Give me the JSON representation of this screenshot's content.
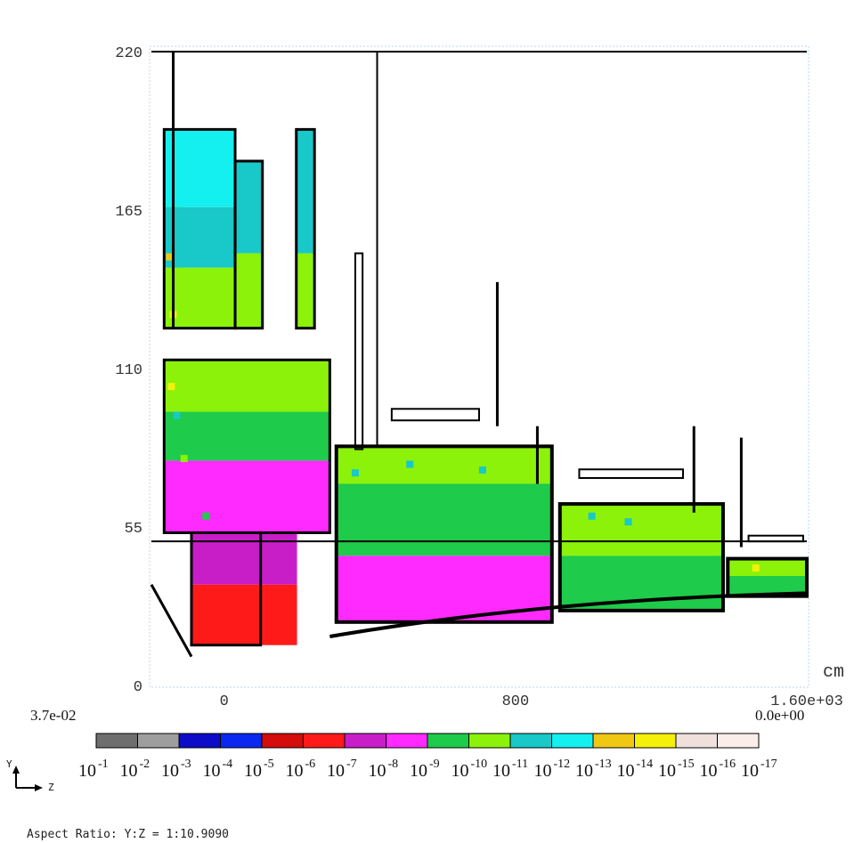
{
  "chart_data": {
    "type": "heatmap",
    "title": "",
    "xlabel": "cm",
    "ylabel": "",
    "xlim": [
      -200,
      1600
    ],
    "ylim": [
      0,
      220
    ],
    "x_ticks": [
      {
        "value": 0,
        "label": "0"
      },
      {
        "value": 800,
        "label": "800"
      },
      {
        "value": 1600,
        "label": "1.60e+03"
      }
    ],
    "y_ticks": [
      {
        "value": 0,
        "label": "0"
      },
      {
        "value": 55,
        "label": "55"
      },
      {
        "value": 110,
        "label": "110"
      },
      {
        "value": 165,
        "label": "165"
      },
      {
        "value": 220,
        "label": "220"
      }
    ],
    "colorbar": {
      "max_label": "3.7e-02",
      "min_label": "0.0e+00",
      "base": "10",
      "exponents": [
        "-1",
        "-2",
        "-3",
        "-4",
        "-5",
        "-6",
        "-7",
        "-8",
        "-9",
        "-10",
        "-11",
        "-12",
        "-13",
        "-14",
        "-15",
        "-16",
        "-17"
      ],
      "colors": [
        "#6e6e6e",
        "#9e9e9e",
        "#0b0bc8",
        "#0a28f0",
        "#d40c0c",
        "#ff1a1a",
        "#c81ec8",
        "#ff2aff",
        "#1ecb4a",
        "#8cf20a",
        "#19c8c8",
        "#14f0f0",
        "#f0c814",
        "#f5f00a",
        "#efe0dc",
        "#fbeeea"
      ]
    },
    "axis_indicator": {
      "vertical": "Y",
      "horizontal": "Z"
    },
    "aspect_ratio": "Aspect Ratio: Y:Z = 1:10.9090",
    "regions": [
      {
        "name": "top-left-block",
        "x0": -165,
        "x1": -110,
        "y0": 124,
        "y1": 192,
        "levels": [
          {
            "from": -165,
            "to": -150,
            "color": "#f5f00a"
          },
          {
            "from": -150,
            "to": -110,
            "color": "#8cf20a"
          }
        ]
      },
      {
        "name": "upper-block-a",
        "x0": -165,
        "x1": 30,
        "y0": 124,
        "y1": 193,
        "cells": [
          {
            "y0": 166,
            "y1": 193,
            "color": "#14f0f0"
          },
          {
            "y0": 145,
            "y1": 166,
            "color": "#19c8c8"
          },
          {
            "y0": 124,
            "y1": 145,
            "color": "#8cf20a"
          }
        ]
      },
      {
        "name": "upper-block-b",
        "x0": 30,
        "x1": 105,
        "y0": 124,
        "y1": 182,
        "cells": [
          {
            "y0": 150,
            "y1": 182,
            "color": "#19c8c8"
          },
          {
            "y0": 124,
            "y1": 150,
            "color": "#8cf20a"
          }
        ]
      },
      {
        "name": "upper-rod",
        "x0": 198,
        "x1": 248,
        "y0": 124,
        "y1": 193,
        "cells": [
          {
            "y0": 150,
            "y1": 193,
            "color": "#19c8c8"
          },
          {
            "y0": 124,
            "y1": 150,
            "color": "#8cf20a"
          }
        ]
      },
      {
        "name": "mid-block",
        "x0": -165,
        "x1": 290,
        "y0": 53,
        "y1": 113,
        "cells": [
          {
            "y0": 95,
            "y1": 113,
            "color": "#8cf20a"
          },
          {
            "y0": 78,
            "y1": 95,
            "color": "#1ecb4a"
          },
          {
            "y0": 53,
            "y1": 78,
            "color": "#ff2aff"
          }
        ]
      },
      {
        "name": "lower-cone",
        "x0": -90,
        "x1": 200,
        "y0": 14,
        "y1": 53,
        "cells": [
          {
            "y0": 35,
            "y1": 53,
            "color": "#c81ec8"
          },
          {
            "y0": 14,
            "y1": 35,
            "color": "#ff1a1a"
          }
        ]
      },
      {
        "name": "block-1",
        "x0": 308,
        "x1": 900,
        "y0": 22,
        "y1": 83,
        "cells": [
          {
            "y0": 70,
            "y1": 83,
            "color": "#8cf20a"
          },
          {
            "y0": 45,
            "y1": 70,
            "color": "#1ecb4a"
          },
          {
            "y0": 22,
            "y1": 45,
            "color": "#ff2aff"
          }
        ]
      },
      {
        "name": "block-2",
        "x0": 922,
        "x1": 1370,
        "y0": 26,
        "y1": 63,
        "cells": [
          {
            "y0": 45,
            "y1": 63,
            "color": "#8cf20a"
          },
          {
            "y0": 26,
            "y1": 45,
            "color": "#1ecb4a"
          }
        ]
      },
      {
        "name": "block-3",
        "x0": 1383,
        "x1": 1600,
        "y0": 31,
        "y1": 44,
        "cells": [
          {
            "y0": 38,
            "y1": 44,
            "color": "#8cf20a"
          },
          {
            "y0": 31,
            "y1": 38,
            "color": "#1ecb4a"
          }
        ]
      }
    ]
  }
}
